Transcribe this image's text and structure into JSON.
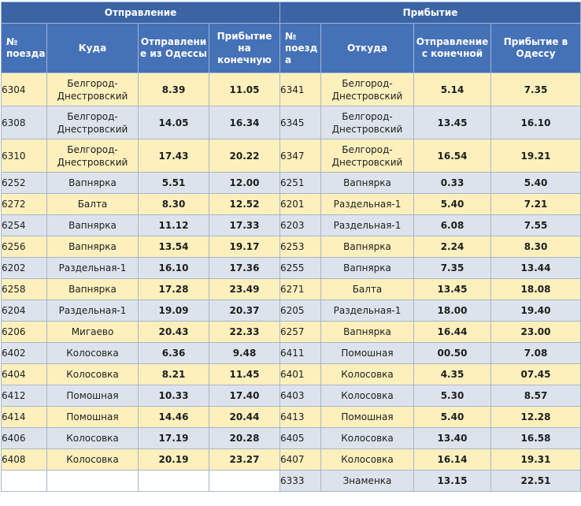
{
  "headers": {
    "departure_group": "Отправление",
    "arrival_group": "Прибытие",
    "cols": [
      "№ поезда",
      "Куда",
      "Отправлени е из Одессы",
      "Прибытие на конечную",
      "№ поезд а",
      "Откуда",
      "Отправление с конечной",
      "Прибытие в Одессу"
    ]
  },
  "rows": [
    {
      "out_num": "6304",
      "out_dest": "Белгород-Днестровский",
      "out_dep": "8.39",
      "out_arr": "11.05",
      "in_num": "6341",
      "in_from": "Белгород-Днестровский",
      "in_dep": "5.14",
      "in_arr": "7.35"
    },
    {
      "out_num": "6308",
      "out_dest": "Белгород-Днестровский",
      "out_dep": "14.05",
      "out_arr": "16.34",
      "in_num": "6345",
      "in_from": "Белгород-Днестровский",
      "in_dep": "13.45",
      "in_arr": "16.10"
    },
    {
      "out_num": "6310",
      "out_dest": "Белгород-Днестровский",
      "out_dep": "17.43",
      "out_arr": "20.22",
      "in_num": "6347",
      "in_from": "Белгород-Днестровский",
      "in_dep": "16.54",
      "in_arr": "19.21"
    },
    {
      "out_num": "6252",
      "out_dest": "Вапнярка",
      "out_dep": "5.51",
      "out_arr": "12.00",
      "in_num": "6251",
      "in_from": "Вапнярка",
      "in_dep": "0.33",
      "in_arr": "5.40"
    },
    {
      "out_num": "6272",
      "out_dest": "Балта",
      "out_dep": "8.30",
      "out_arr": "12.52",
      "in_num": "6201",
      "in_from": "Раздельная-1",
      "in_dep": "5.40",
      "in_arr": "7.21"
    },
    {
      "out_num": "6254",
      "out_dest": "Вапнярка",
      "out_dep": "11.12",
      "out_arr": "17.33",
      "in_num": "6203",
      "in_from": "Раздельная-1",
      "in_dep": "6.08",
      "in_arr": "7.55"
    },
    {
      "out_num": "6256",
      "out_dest": "Вапнярка",
      "out_dep": "13.54",
      "out_arr": "19.17",
      "in_num": "6253",
      "in_from": "Вапнярка",
      "in_dep": "2.24",
      "in_arr": "8.30"
    },
    {
      "out_num": "6202",
      "out_dest": "Раздельная-1",
      "out_dep": "16.10",
      "out_arr": "17.36",
      "in_num": "6255",
      "in_from": "Вапнярка",
      "in_dep": "7.35",
      "in_arr": "13.44"
    },
    {
      "out_num": "6258",
      "out_dest": "Вапнярка",
      "out_dep": "17.28",
      "out_arr": "23.49",
      "in_num": "6271",
      "in_from": "Балта",
      "in_dep": "13.45",
      "in_arr": "18.08"
    },
    {
      "out_num": "6204",
      "out_dest": "Раздельная-1",
      "out_dep": "19.09",
      "out_arr": "20.37",
      "in_num": "6205",
      "in_from": "Раздельная-1",
      "in_dep": "18.00",
      "in_arr": "19.40"
    },
    {
      "out_num": "6206",
      "out_dest": "Мигаево",
      "out_dep": "20.43",
      "out_arr": "22.33",
      "in_num": "6257",
      "in_from": "Вапнярка",
      "in_dep": "16.44",
      "in_arr": "23.00"
    },
    {
      "out_num": "6402",
      "out_dest": "Колосовка",
      "out_dep": "6.36",
      "out_arr": "9.48",
      "in_num": "6411",
      "in_from": "Помошная",
      "in_dep": "00.50",
      "in_arr": "7.08"
    },
    {
      "out_num": "6404",
      "out_dest": "Колосовка",
      "out_dep": "8.21",
      "out_arr": "11.45",
      "in_num": "6401",
      "in_from": "Колосовка",
      "in_dep": "4.35",
      "in_arr": "07.45"
    },
    {
      "out_num": "6412",
      "out_dest": "Помошная",
      "out_dep": "10.33",
      "out_arr": "17.40",
      "in_num": "6403",
      "in_from": "Колосовка",
      "in_dep": "5.30",
      "in_arr": "8.57"
    },
    {
      "out_num": "6414",
      "out_dest": "Помошная",
      "out_dep": "14.46",
      "out_arr": "20.44",
      "in_num": "6413",
      "in_from": "Помошная",
      "in_dep": "5.40",
      "in_arr": "12.28"
    },
    {
      "out_num": "6406",
      "out_dest": "Колосовка",
      "out_dep": "17.19",
      "out_arr": "20.28",
      "in_num": "6405",
      "in_from": "Колосовка",
      "in_dep": "13.40",
      "in_arr": "16.58"
    },
    {
      "out_num": "6408",
      "out_dest": "Колосовка",
      "out_dep": "20.19",
      "out_arr": "23.27",
      "in_num": "6407",
      "in_from": "Колосовка",
      "in_dep": "16.14",
      "in_arr": "19.31"
    },
    {
      "out_num": "",
      "out_dest": "",
      "out_dep": "",
      "out_arr": "",
      "in_num": "6333",
      "in_from": "Знаменка",
      "in_dep": "13.15",
      "in_arr": "22.51"
    }
  ]
}
